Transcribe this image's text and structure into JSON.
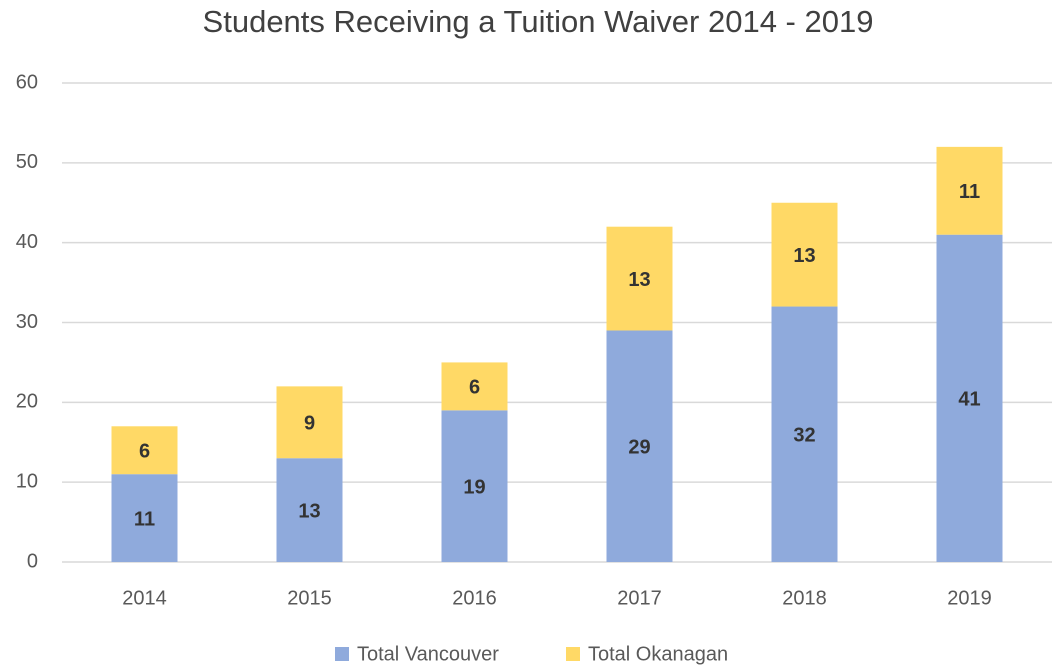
{
  "chart_data": {
    "type": "stacked_bar",
    "title": "Students Receiving a Tuition Waiver 2014 - 2019",
    "categories": [
      "2014",
      "2015",
      "2016",
      "2017",
      "2018",
      "2019"
    ],
    "series": [
      {
        "name": "Total Vancouver",
        "color": "#8faadc",
        "values": [
          11,
          13,
          19,
          29,
          32,
          41
        ]
      },
      {
        "name": "Total Okanagan",
        "color": "#ffd966",
        "values": [
          6,
          9,
          6,
          13,
          13,
          11
        ]
      }
    ],
    "ylim": [
      0,
      60
    ],
    "yticks": [
      0,
      10,
      20,
      30,
      40,
      50,
      60
    ],
    "grid": true,
    "legend": "bottom"
  }
}
